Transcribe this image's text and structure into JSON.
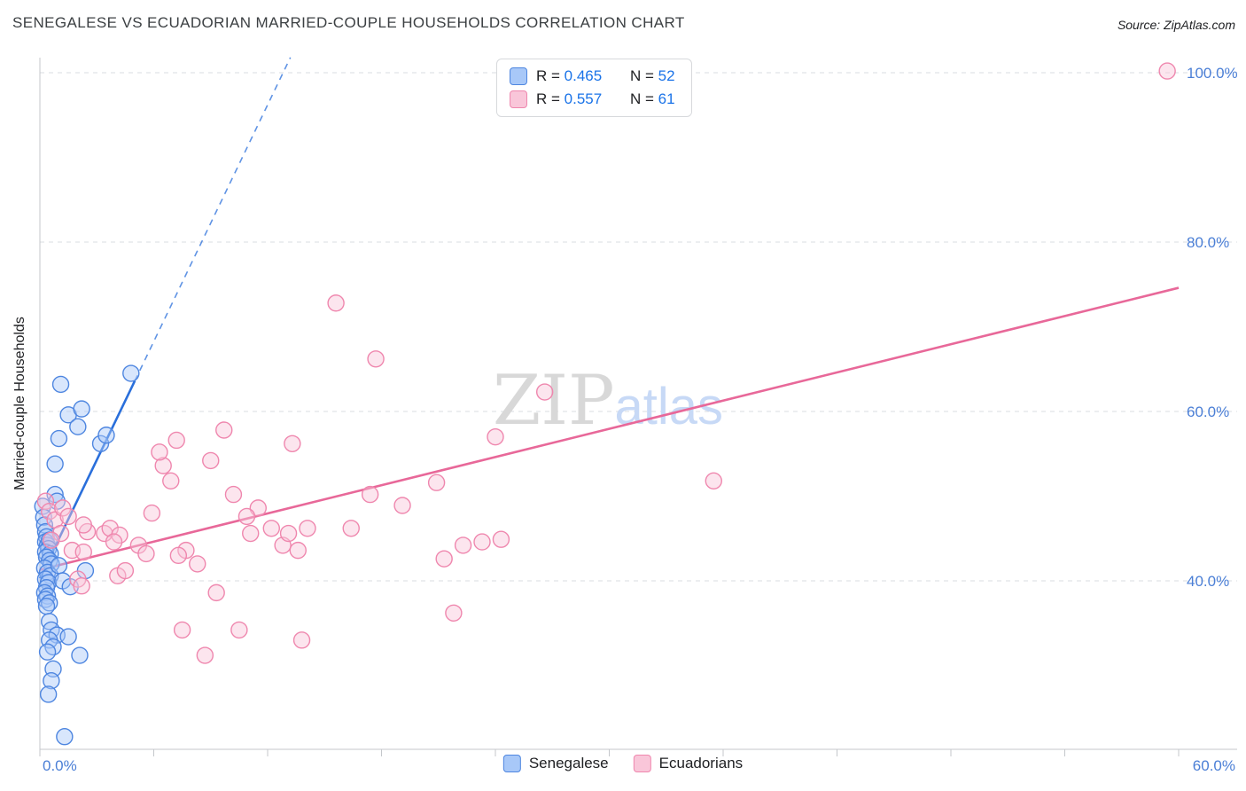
{
  "header": {
    "title": "SENEGALESE VS ECUADORIAN MARRIED-COUPLE HOUSEHOLDS CORRELATION CHART",
    "source": "Source: ZipAtlas.com"
  },
  "watermark": {
    "part1": "ZIP",
    "part2": "atlas"
  },
  "axes": {
    "y_title": "Married-couple Households",
    "x_min_label": "0.0%",
    "x_max_label": "60.0%",
    "tick_label_color": "#4b7fd6"
  },
  "chart_data": {
    "type": "scatter",
    "title": "SENEGALESE VS ECUADORIAN MARRIED-COUPLE HOUSEHOLDS CORRELATION CHART",
    "xlabel": "",
    "ylabel": "Married-couple Households",
    "xlim": [
      0,
      60
    ],
    "ylim": [
      20,
      102
    ],
    "x_tick_step": 6,
    "grid": "dashed-horizontal",
    "legend_position": "top-center",
    "y_ticks": [
      {
        "value": 100,
        "label": "100.0%"
      },
      {
        "value": 80,
        "label": "80.0%"
      },
      {
        "value": 60,
        "label": "60.0%"
      },
      {
        "value": 40,
        "label": "40.0%"
      }
    ],
    "series": [
      {
        "name": "Senegalese",
        "r_label": "R =",
        "r_value": "0.465",
        "n_label": "N =",
        "n_value": "52",
        "fill": "#a8c8f8",
        "stroke": "#4e86e0",
        "line": "#2a6fdb",
        "trend": {
          "solid": [
            [
              0,
              40.3
            ],
            [
              5.0,
              63.6
            ]
          ],
          "dashed": [
            [
              5.0,
              63.6
            ],
            [
              13.2,
              101.8
            ]
          ]
        },
        "points": [
          [
            0.15,
            48.8
          ],
          [
            0.2,
            47.5
          ],
          [
            0.25,
            46.6
          ],
          [
            0.3,
            45.8
          ],
          [
            0.35,
            45.2
          ],
          [
            0.3,
            44.6
          ],
          [
            0.4,
            44.2
          ],
          [
            0.5,
            44.8
          ],
          [
            0.45,
            43.8
          ],
          [
            0.3,
            43.4
          ],
          [
            0.55,
            43.2
          ],
          [
            0.35,
            42.8
          ],
          [
            0.5,
            42.4
          ],
          [
            0.6,
            42.0
          ],
          [
            0.25,
            41.5
          ],
          [
            0.4,
            41.0
          ],
          [
            0.55,
            40.6
          ],
          [
            0.3,
            40.2
          ],
          [
            0.45,
            39.8
          ],
          [
            0.35,
            39.2
          ],
          [
            0.25,
            38.6
          ],
          [
            0.4,
            38.2
          ],
          [
            0.3,
            37.8
          ],
          [
            0.5,
            37.4
          ],
          [
            0.35,
            37.0
          ],
          [
            1.0,
            41.8
          ],
          [
            1.2,
            40.0
          ],
          [
            1.6,
            39.3
          ],
          [
            2.4,
            41.2
          ],
          [
            0.8,
            50.2
          ],
          [
            0.9,
            49.4
          ],
          [
            0.8,
            53.8
          ],
          [
            1.0,
            56.8
          ],
          [
            1.1,
            63.2
          ],
          [
            1.5,
            59.6
          ],
          [
            2.2,
            60.3
          ],
          [
            2.0,
            58.2
          ],
          [
            3.2,
            56.2
          ],
          [
            3.5,
            57.2
          ],
          [
            4.8,
            64.5
          ],
          [
            0.5,
            35.2
          ],
          [
            0.6,
            34.2
          ],
          [
            0.9,
            33.6
          ],
          [
            1.5,
            33.4
          ],
          [
            0.5,
            33.0
          ],
          [
            0.7,
            32.2
          ],
          [
            0.4,
            31.6
          ],
          [
            2.1,
            31.2
          ],
          [
            0.7,
            29.6
          ],
          [
            0.6,
            28.2
          ],
          [
            0.45,
            26.6
          ],
          [
            1.3,
            21.6
          ]
        ]
      },
      {
        "name": "Ecuadorians",
        "r_label": "R =",
        "r_value": "0.557",
        "n_label": "N =",
        "n_value": "61",
        "fill": "#f9c6d9",
        "stroke": "#ef87ae",
        "line": "#e86899",
        "trend": {
          "solid": [
            [
              0,
              41.3
            ],
            [
              60,
              74.6
            ]
          ]
        },
        "points": [
          [
            0.3,
            49.4
          ],
          [
            0.5,
            48.2
          ],
          [
            0.8,
            47.2
          ],
          [
            1.2,
            48.6
          ],
          [
            1.5,
            47.6
          ],
          [
            1.1,
            45.6
          ],
          [
            0.6,
            44.8
          ],
          [
            1.7,
            43.6
          ],
          [
            2.5,
            45.8
          ],
          [
            2.3,
            46.6
          ],
          [
            3.4,
            45.6
          ],
          [
            3.7,
            46.2
          ],
          [
            4.2,
            45.4
          ],
          [
            3.9,
            44.6
          ],
          [
            2.0,
            40.2
          ],
          [
            2.2,
            39.4
          ],
          [
            4.1,
            40.6
          ],
          [
            4.5,
            41.2
          ],
          [
            2.3,
            43.4
          ],
          [
            5.2,
            44.2
          ],
          [
            5.6,
            43.2
          ],
          [
            5.9,
            48.0
          ],
          [
            6.5,
            53.6
          ],
          [
            6.3,
            55.2
          ],
          [
            7.2,
            56.6
          ],
          [
            6.9,
            51.8
          ],
          [
            7.7,
            43.6
          ],
          [
            7.3,
            43.0
          ],
          [
            8.3,
            42.0
          ],
          [
            7.5,
            34.2
          ],
          [
            8.7,
            31.2
          ],
          [
            9.3,
            38.6
          ],
          [
            10.5,
            34.2
          ],
          [
            9.0,
            54.2
          ],
          [
            10.2,
            50.2
          ],
          [
            11.5,
            48.6
          ],
          [
            10.9,
            47.6
          ],
          [
            11.1,
            45.6
          ],
          [
            12.2,
            46.2
          ],
          [
            12.8,
            44.2
          ],
          [
            13.1,
            45.6
          ],
          [
            14.1,
            46.2
          ],
          [
            13.6,
            43.6
          ],
          [
            9.7,
            57.8
          ],
          [
            13.3,
            56.2
          ],
          [
            15.6,
            72.8
          ],
          [
            17.7,
            66.2
          ],
          [
            19.1,
            48.9
          ],
          [
            17.4,
            50.2
          ],
          [
            16.4,
            46.2
          ],
          [
            13.8,
            33.0
          ],
          [
            20.9,
            51.6
          ],
          [
            22.3,
            44.2
          ],
          [
            21.3,
            42.6
          ],
          [
            21.8,
            36.2
          ],
          [
            24.0,
            57.0
          ],
          [
            26.6,
            62.3
          ],
          [
            23.3,
            44.6
          ],
          [
            24.3,
            44.9
          ],
          [
            35.5,
            51.8
          ],
          [
            59.4,
            100.2
          ]
        ]
      }
    ]
  }
}
